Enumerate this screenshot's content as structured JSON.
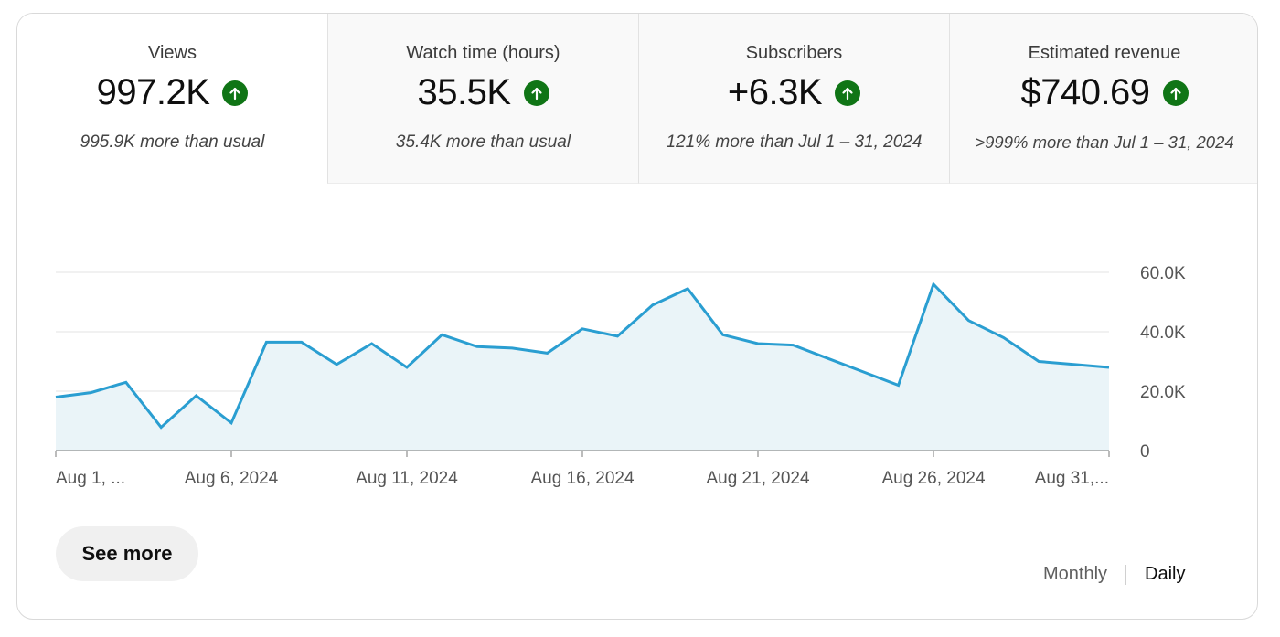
{
  "metrics": [
    {
      "title": "Views",
      "value": "997.2K",
      "trend_icon": "arrow-up-circle-icon",
      "comparison": "995.9K more than usual",
      "selected": true
    },
    {
      "title": "Watch time (hours)",
      "value": "35.5K",
      "trend_icon": "arrow-up-circle-icon",
      "comparison": "35.4K more than usual",
      "selected": false
    },
    {
      "title": "Subscribers",
      "value": "+6.3K",
      "trend_icon": "arrow-up-circle-icon",
      "comparison": "121% more than Jul 1 – 31, 2024",
      "selected": false
    },
    {
      "title": "Estimated revenue",
      "value": "$740.69",
      "trend_icon": "arrow-up-circle-icon",
      "comparison": ">999% more than Jul 1 – 31, 2024",
      "selected": false
    }
  ],
  "colors": {
    "line": "#2a9ed1",
    "fill": "#eaf4f8",
    "trend_up": "#107516"
  },
  "chart_data": {
    "type": "area",
    "x": [
      "Aug 1",
      "Aug 2",
      "Aug 3",
      "Aug 4",
      "Aug 5",
      "Aug 6",
      "Aug 7",
      "Aug 8",
      "Aug 9",
      "Aug 10",
      "Aug 11",
      "Aug 12",
      "Aug 13",
      "Aug 14",
      "Aug 15",
      "Aug 16",
      "Aug 17",
      "Aug 18",
      "Aug 19",
      "Aug 20",
      "Aug 21",
      "Aug 22",
      "Aug 23",
      "Aug 24",
      "Aug 25",
      "Aug 26",
      "Aug 27",
      "Aug 28",
      "Aug 29",
      "Aug 30",
      "Aug 31"
    ],
    "x_tick_labels": [
      "Aug 1, ...",
      "Aug 6, 2024",
      "Aug 11, 2024",
      "Aug 16, 2024",
      "Aug 21, 2024",
      "Aug 26, 2024",
      "Aug 31,..."
    ],
    "x_tick_indices": [
      0,
      5,
      10,
      15,
      20,
      25,
      30
    ],
    "series": [
      {
        "values": [
          18000,
          19500,
          23000,
          7800,
          18500,
          9300,
          36500,
          36500,
          29000,
          36000,
          28000,
          39000,
          35000,
          34500,
          32800,
          41000,
          38500,
          49000,
          54500,
          39000,
          36000,
          35500,
          31000,
          26500,
          22000,
          56000,
          43800,
          38000,
          30000,
          29000,
          28000
        ]
      }
    ],
    "y_tick_labels": [
      "0",
      "20.0K",
      "40.0K",
      "60.0K"
    ],
    "y_tick_values": [
      0,
      20000,
      40000,
      60000
    ],
    "ylim": [
      0,
      60000
    ],
    "grid": true,
    "y_axis_side": "right"
  },
  "actions": {
    "see_more_label": "See more"
  },
  "period_toggle": {
    "monthly_label": "Monthly",
    "daily_label": "Daily",
    "selected": "Daily"
  }
}
